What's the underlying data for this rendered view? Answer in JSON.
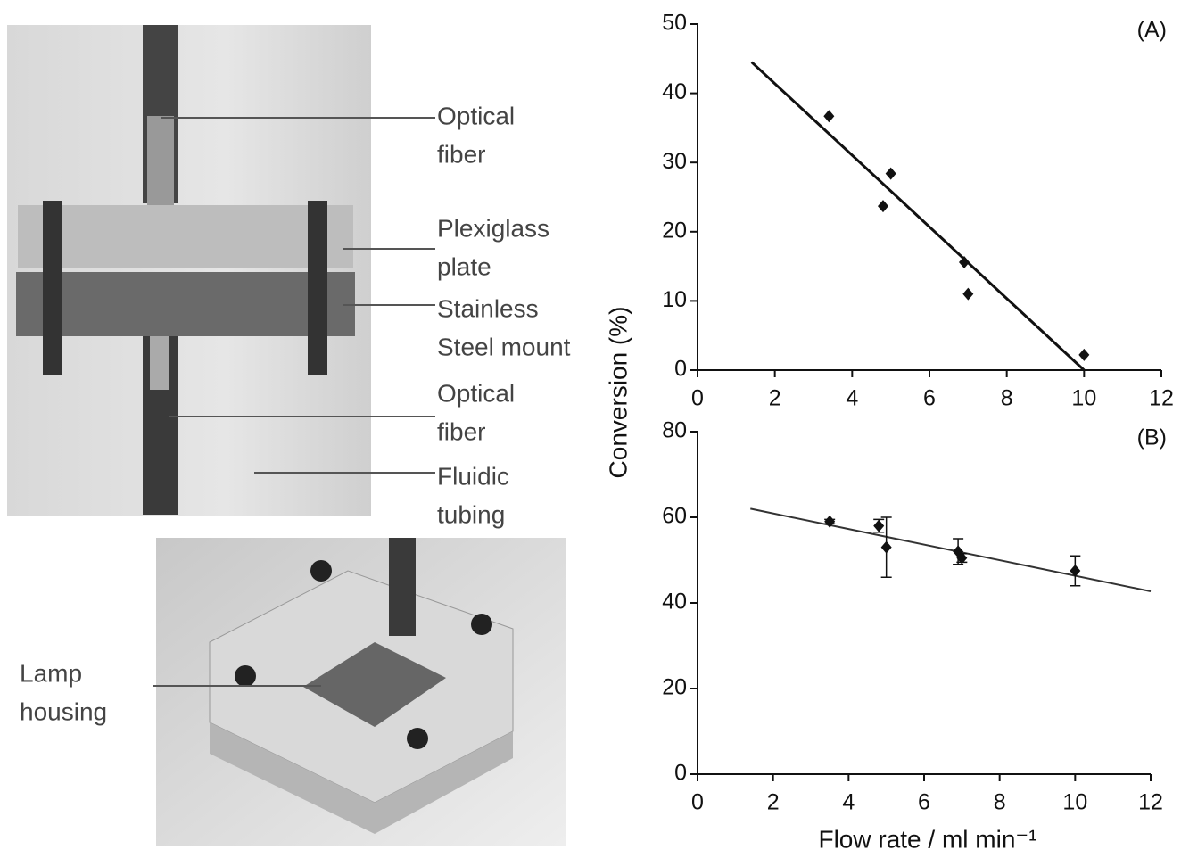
{
  "photos": {
    "labels": [
      [
        "Optical",
        "fiber"
      ],
      [
        "Plexiglass",
        "plate"
      ],
      [
        "Stainless",
        "Steel mount"
      ],
      [
        "Optical",
        "fiber"
      ],
      [
        "Fluidic",
        "tubing"
      ],
      [
        "Lamp",
        "housing"
      ]
    ]
  },
  "chart_data": [
    {
      "type": "scatter",
      "label": "(A)",
      "ylabel": "Conversion (%)",
      "xlim": [
        0,
        12
      ],
      "xticks": [
        0,
        2,
        4,
        6,
        8,
        10,
        12
      ],
      "ylim": [
        0,
        50
      ],
      "yticks": [
        0,
        10,
        20,
        30,
        40,
        50
      ],
      "series": [
        {
          "color": "#111111",
          "x": [
            3.4,
            4.8,
            5,
            6.9,
            7,
            10
          ],
          "values": [
            36.7,
            23.7,
            28.4,
            15.6,
            11,
            2.2
          ]
        }
      ],
      "fit": {
        "color": "#111111",
        "x": [
          1.4,
          10
        ],
        "values": [
          44.5,
          0
        ]
      }
    },
    {
      "type": "scatter",
      "label": "(B)",
      "xlabel": "Flow rate / ml min⁻¹",
      "xlim": [
        0,
        12
      ],
      "xticks": [
        0,
        2,
        4,
        6,
        8,
        10,
        12
      ],
      "ylim": [
        0,
        80
      ],
      "yticks": [
        0,
        20,
        40,
        60,
        80
      ],
      "series": [
        {
          "color": "#111111",
          "x": [
            3.5,
            4.8,
            5,
            6.9,
            7,
            10
          ],
          "values": [
            59,
            58,
            53,
            52,
            50.5,
            47.5
          ],
          "errors": [
            0.5,
            1.5,
            7,
            3,
            1,
            3.5
          ]
        }
      ],
      "fit": {
        "color": "#333333",
        "x": [
          1.4,
          12
        ],
        "values": [
          62,
          42.7
        ]
      }
    }
  ]
}
